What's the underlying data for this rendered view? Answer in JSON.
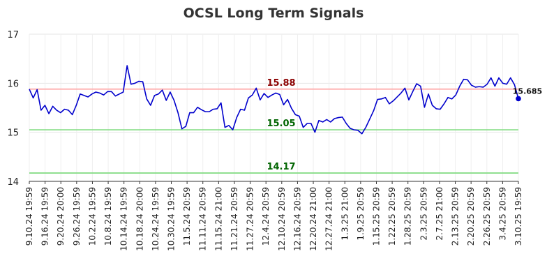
{
  "chart_data": {
    "type": "line",
    "title": "OCSL Long Term Signals",
    "ylim": [
      14,
      17
    ],
    "yticks": [
      "14",
      "15",
      "16",
      "17"
    ],
    "x_tick_labels": [
      "9.10.24 19:59",
      "9.16.24 19:59",
      "9.20.24 20:00",
      "9.26.24 19:59",
      "10.2.24 19:59",
      "10.8.24 19:59",
      "10.14.24 19:59",
      "10.18.24 20:00",
      "10.24.24 19:59",
      "10.30.24 19:59",
      "11.5.24 20:59",
      "11.11.24 20:59",
      "11.15.24 21:00",
      "11.21.24 20:59",
      "11.27.24 20:59",
      "12.4.24 20:59",
      "12.10.24 20:59",
      "12.16.24 20:59",
      "12.20.24 21:00",
      "12.27.24 21:00",
      "1.3.25 21:00",
      "1.9.25 20:59",
      "1.15.25 20:59",
      "1.22.25 20:59",
      "1.28.25 20:59",
      "2.3.25 20:59",
      "2.7.25 21:00",
      "2.13.25 20:59",
      "2.20.25 20:59",
      "2.26.25 20:59",
      "3.4.25 20:59",
      "3.10.25 19:59"
    ],
    "levels": [
      {
        "value": 15.88,
        "label": "15.88",
        "line_color": "#ffaaaa",
        "label_color": "#8b0000"
      },
      {
        "value": 15.05,
        "label": "15.05",
        "line_color": "#88dd88",
        "label_color": "#006400"
      },
      {
        "value": 14.17,
        "label": "14.17",
        "line_color": "#88dd88",
        "label_color": "#006400"
      }
    ],
    "series": [
      {
        "color": "#0000cc",
        "values": [
          15.88,
          15.7,
          15.87,
          15.45,
          15.55,
          15.38,
          15.53,
          15.45,
          15.4,
          15.47,
          15.45,
          15.36,
          15.55,
          15.78,
          15.75,
          15.72,
          15.78,
          15.82,
          15.8,
          15.76,
          15.83,
          15.83,
          15.74,
          15.78,
          15.82,
          16.36,
          15.98,
          16.0,
          16.04,
          16.03,
          15.68,
          15.55,
          15.75,
          15.78,
          15.86,
          15.65,
          15.82,
          15.65,
          15.4,
          15.07,
          15.12,
          15.4,
          15.4,
          15.51,
          15.46,
          15.42,
          15.42,
          15.47,
          15.48,
          15.6,
          15.1,
          15.14,
          15.05,
          15.3,
          15.47,
          15.45,
          15.7,
          15.76,
          15.9,
          15.66,
          15.79,
          15.71,
          15.76,
          15.8,
          15.77,
          15.56,
          15.67,
          15.49,
          15.36,
          15.33,
          15.1,
          15.18,
          15.18,
          15.0,
          15.24,
          15.21,
          15.26,
          15.21,
          15.28,
          15.3,
          15.31,
          15.18,
          15.08,
          15.05,
          15.04,
          14.97,
          15.1,
          15.27,
          15.44,
          15.67,
          15.68,
          15.71,
          15.58,
          15.64,
          15.72,
          15.8,
          15.9,
          15.66,
          15.83,
          15.99,
          15.94,
          15.51,
          15.78,
          15.55,
          15.48,
          15.47,
          15.58,
          15.71,
          15.68,
          15.76,
          15.94,
          16.08,
          16.07,
          15.96,
          15.92,
          15.93,
          15.92,
          15.98,
          16.11,
          15.94,
          16.11,
          16.0,
          15.98,
          16.11,
          15.97,
          15.685
        ]
      }
    ],
    "last_value_label": "15.685",
    "grid": true
  }
}
